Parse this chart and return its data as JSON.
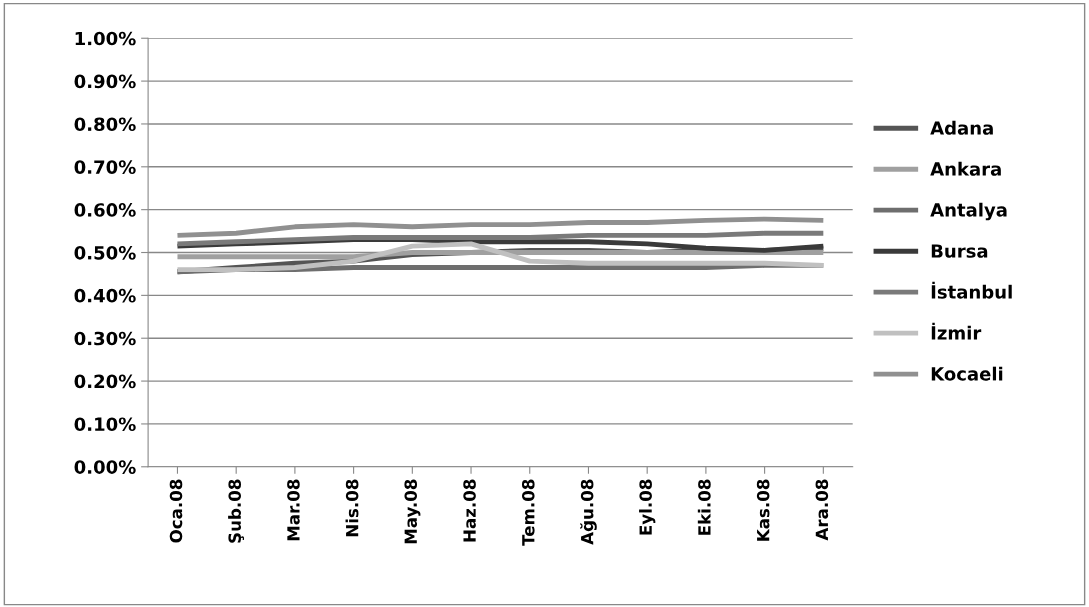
{
  "chart_data": {
    "type": "line",
    "categories": [
      "Oca.08",
      "Şub.08",
      "Mar.08",
      "Nis.08",
      "May.08",
      "Haz.08",
      "Tem.08",
      "Ağu.08",
      "Eyl.08",
      "Eki.08",
      "Kas.08",
      "Ara.08"
    ],
    "series": [
      {
        "name": "Adana",
        "color": "#555555",
        "values": [
          0.455,
          0.465,
          0.475,
          0.48,
          0.495,
          0.5,
          0.505,
          0.505,
          0.5,
          0.505,
          0.505,
          0.51
        ]
      },
      {
        "name": "Ankara",
        "color": "#a0a0a0",
        "values": [
          0.49,
          0.49,
          0.49,
          0.49,
          0.5,
          0.5,
          0.5,
          0.5,
          0.5,
          0.5,
          0.5,
          0.5
        ]
      },
      {
        "name": "Antalya",
        "color": "#6e6e6e",
        "values": [
          0.455,
          0.46,
          0.46,
          0.465,
          0.465,
          0.465,
          0.465,
          0.465,
          0.465,
          0.465,
          0.47,
          0.47
        ]
      },
      {
        "name": "Bursa",
        "color": "#3a3a3a",
        "values": [
          0.515,
          0.52,
          0.525,
          0.53,
          0.53,
          0.525,
          0.525,
          0.525,
          0.52,
          0.51,
          0.505,
          0.515
        ]
      },
      {
        "name": "İstanbul",
        "color": "#7a7a7a",
        "values": [
          0.52,
          0.525,
          0.53,
          0.535,
          0.535,
          0.535,
          0.535,
          0.54,
          0.54,
          0.54,
          0.545,
          0.545
        ]
      },
      {
        "name": "İzmir",
        "color": "#c0c0c0",
        "values": [
          0.46,
          0.46,
          0.465,
          0.48,
          0.515,
          0.52,
          0.48,
          0.475,
          0.475,
          0.475,
          0.475,
          0.47
        ]
      },
      {
        "name": "Kocaeli",
        "color": "#909090",
        "values": [
          0.54,
          0.545,
          0.56,
          0.565,
          0.56,
          0.565,
          0.565,
          0.57,
          0.57,
          0.575,
          0.578,
          0.575
        ]
      }
    ],
    "ylim": [
      0,
      1
    ],
    "yticks": [
      {
        "value": 0,
        "label": "0.00%"
      },
      {
        "value": 0.1,
        "label": "0.10%"
      },
      {
        "value": 0.2,
        "label": "0.20%"
      },
      {
        "value": 0.3,
        "label": "0.30%"
      },
      {
        "value": 0.4,
        "label": "0.40%"
      },
      {
        "value": 0.5,
        "label": "0.50%"
      },
      {
        "value": 0.6,
        "label": "0.60%"
      },
      {
        "value": 0.7,
        "label": "0.70%"
      },
      {
        "value": 0.8,
        "label": "0.80%"
      },
      {
        "value": 0.9,
        "label": "0.90%"
      },
      {
        "value": 1,
        "label": "1.00%"
      }
    ],
    "grid": "y",
    "legend": "right",
    "marker": "none",
    "line_style": "solid"
  }
}
